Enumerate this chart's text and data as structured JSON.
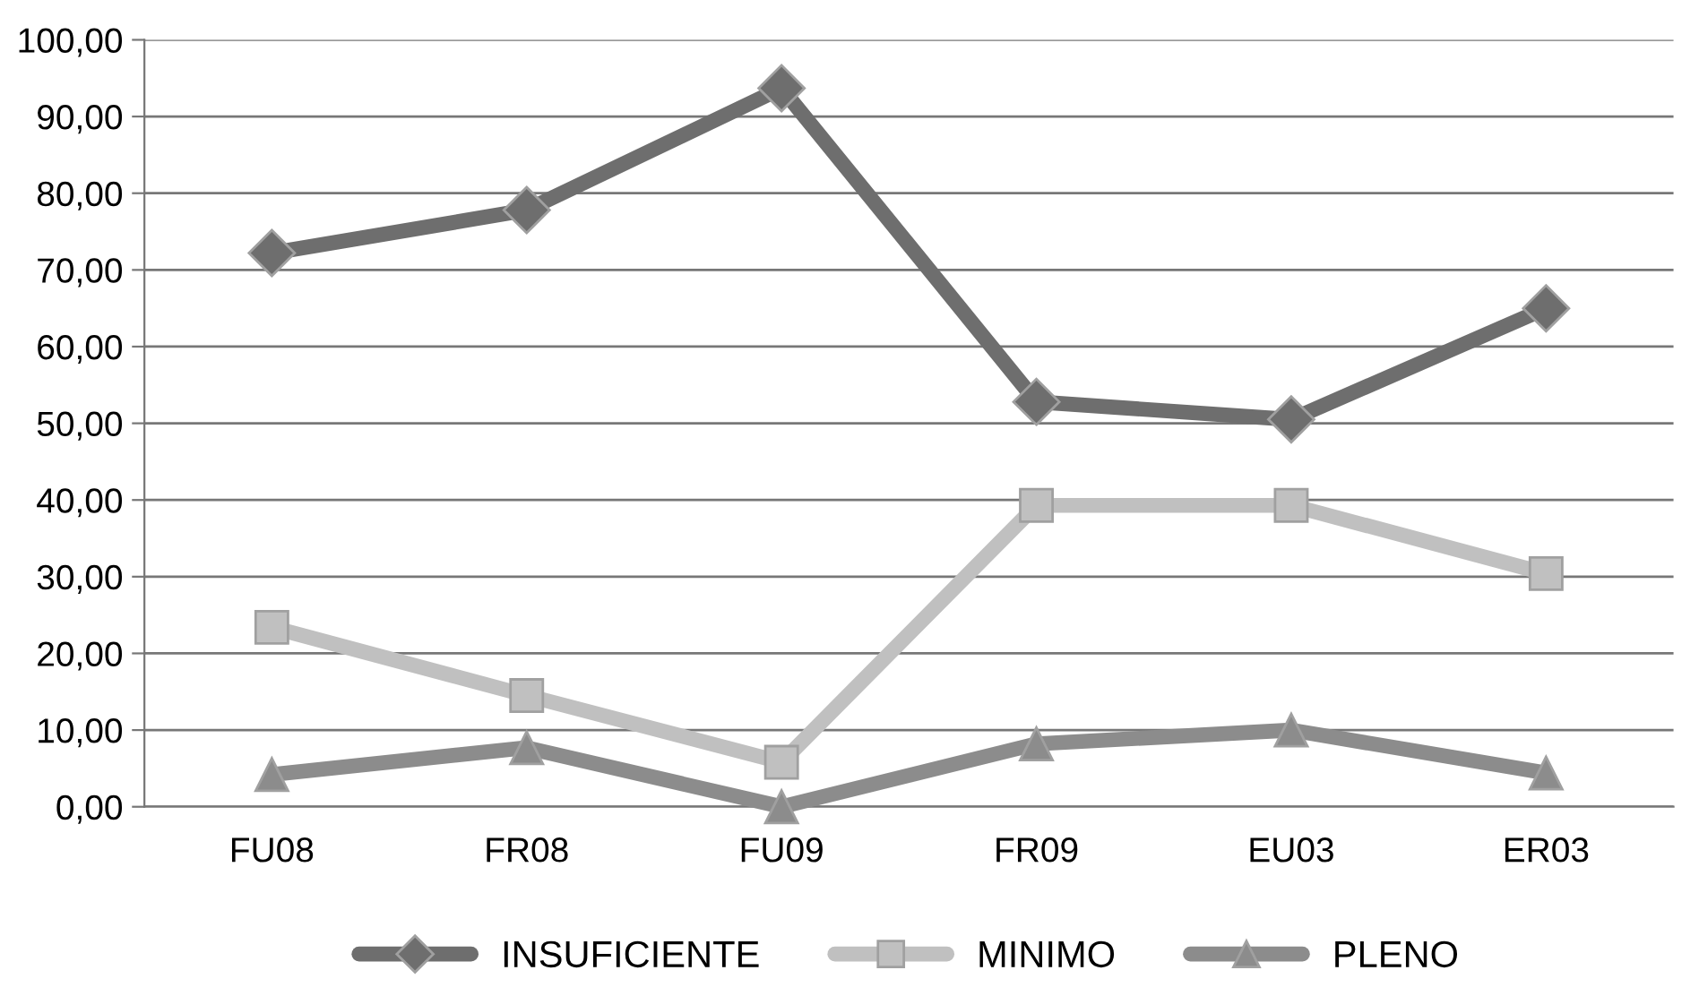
{
  "chart_data": {
    "type": "line",
    "categories": [
      "FU08",
      "FR08",
      "FU09",
      "FR09",
      "EU03",
      "ER03"
    ],
    "series": [
      {
        "name": "INSUFICIENTE",
        "color": "#6e6e6e",
        "marker": "diamond",
        "values": [
          72.2,
          77.8,
          93.7,
          52.8,
          50.5,
          65.0
        ]
      },
      {
        "name": "MINIMO",
        "color": "#c0c0c0",
        "marker": "square",
        "values": [
          23.4,
          14.5,
          5.8,
          39.3,
          39.3,
          30.4
        ]
      },
      {
        "name": "PLENO",
        "color": "#8c8c8c",
        "marker": "triangle",
        "values": [
          4.2,
          7.7,
          0.0,
          8.2,
          10.0,
          4.4
        ]
      }
    ],
    "ylim": [
      0,
      100
    ],
    "yticks": [
      {
        "value": 0,
        "label": "0,00"
      },
      {
        "value": 10,
        "label": "10,00"
      },
      {
        "value": 20,
        "label": "20,00"
      },
      {
        "value": 30,
        "label": "30,00"
      },
      {
        "value": 40,
        "label": "40,00"
      },
      {
        "value": 50,
        "label": "50,00"
      },
      {
        "value": 60,
        "label": "60,00"
      },
      {
        "value": 70,
        "label": "70,00"
      },
      {
        "value": 80,
        "label": "80,00"
      },
      {
        "value": 90,
        "label": "90,00"
      },
      {
        "value": 100,
        "label": "100,00"
      }
    ],
    "grid": "y",
    "legend": "bottom",
    "line_style": "solid"
  }
}
